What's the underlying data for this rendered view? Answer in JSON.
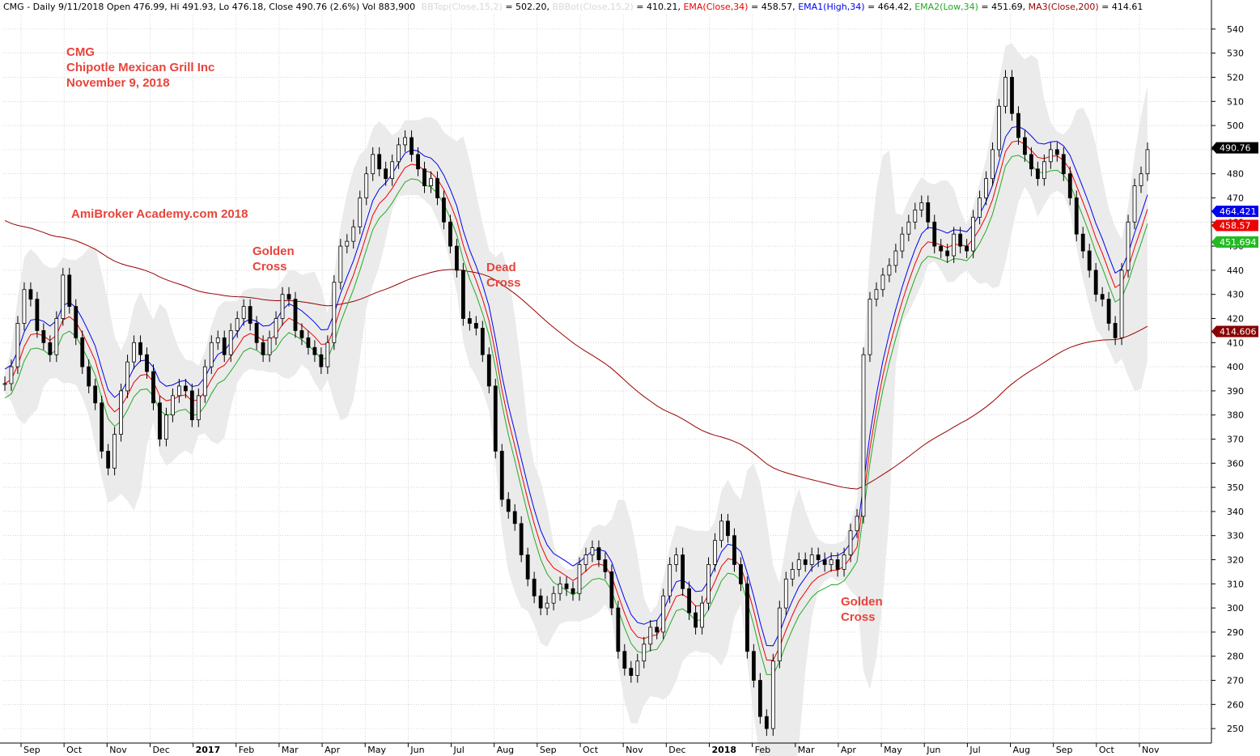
{
  "header": {
    "symbol_info": "CMG - Daily 9/11/2018 Open 476.99, Hi 491.93, Lo 476.18, Close 490.76 (2.6%) Vol 883,900",
    "bbtop_label": "BBTop(Close,15,2)",
    "bbtop_value": " = 502.20, ",
    "bbbot_label": "BBBot(Close,15,2)",
    "bbbot_value": " = 410.21, ",
    "ema_label": "EMA(Close,34)",
    "ema_value": " = 458.57, ",
    "ema1_label": "EMA1(High,34)",
    "ema1_value": " = 464.42, ",
    "ema2_label": "EMA2(Low,34)",
    "ema2_value": " = 451.69, ",
    "ma3_label": "MA3(Close,200)",
    "ma3_value": " = 414.61"
  },
  "annotations": {
    "ticker": "CMG",
    "company": "Chipotle Mexican Grill Inc",
    "date": "November 9, 2018",
    "watermark": "AmiBroker Academy.com  2018",
    "golden_cross_1": [
      "Golden",
      "Cross"
    ],
    "dead_cross": [
      "Dead",
      "Cross"
    ],
    "golden_cross_2": [
      "Golden",
      "Cross"
    ]
  },
  "value_tags": [
    {
      "label": "490.76",
      "value": 490.76,
      "color": "#000000"
    },
    {
      "label": "464.421",
      "value": 464.42,
      "color": "#0000ee"
    },
    {
      "label": "458.57",
      "value": 458.57,
      "color": "#ee0000"
    },
    {
      "label": "451.694",
      "value": 451.69,
      "color": "#22bb22"
    },
    {
      "label": "414.606",
      "value": 414.61,
      "color": "#880000"
    }
  ],
  "colors": {
    "price": "#000000",
    "ema_close": "#ee0000",
    "ema_high": "#0000ee",
    "ema_low": "#22aa22",
    "ma200": "#990000",
    "bollinger_fill": "#e9e9e9",
    "annotation": "#e8443a",
    "grid": "#bbbbbb"
  },
  "chart_data": {
    "type": "line",
    "title": "",
    "xlabel": "",
    "ylabel": "",
    "ylim": [
      244,
      546
    ],
    "grid": true,
    "y_ticks": [
      250,
      260,
      270,
      280,
      290,
      300,
      310,
      320,
      330,
      340,
      350,
      360,
      370,
      380,
      390,
      400,
      410,
      420,
      430,
      440,
      450,
      460,
      470,
      480,
      490,
      500,
      510,
      520,
      530,
      540
    ],
    "x_ticks": [
      {
        "label": "Sep",
        "bold": false
      },
      {
        "label": "Oct",
        "bold": false
      },
      {
        "label": "Nov",
        "bold": false
      },
      {
        "label": "Dec",
        "bold": false
      },
      {
        "label": "2017",
        "bold": true
      },
      {
        "label": "Feb",
        "bold": false
      },
      {
        "label": "Mar",
        "bold": false
      },
      {
        "label": "Apr",
        "bold": false
      },
      {
        "label": "May",
        "bold": false
      },
      {
        "label": "Jun",
        "bold": false
      },
      {
        "label": "Jul",
        "bold": false
      },
      {
        "label": "Aug",
        "bold": false
      },
      {
        "label": "Sep",
        "bold": false
      },
      {
        "label": "Oct",
        "bold": false
      },
      {
        "label": "Nov",
        "bold": false
      },
      {
        "label": "Dec",
        "bold": false
      },
      {
        "label": "2018",
        "bold": true
      },
      {
        "label": "Feb",
        "bold": false
      },
      {
        "label": "Mar",
        "bold": false
      },
      {
        "label": "Apr",
        "bold": false
      },
      {
        "label": "May",
        "bold": false
      },
      {
        "label": "Jun",
        "bold": false
      },
      {
        "label": "Jul",
        "bold": false
      },
      {
        "label": "Aug",
        "bold": false
      },
      {
        "label": "Sep",
        "bold": false
      },
      {
        "label": "Oct",
        "bold": false
      },
      {
        "label": "Nov",
        "bold": false
      }
    ],
    "series": [
      {
        "name": "Close",
        "values": [
          393,
          400,
          418,
          432,
          428,
          415,
          410,
          405,
          420,
          438,
          425,
          412,
          400,
          392,
          385,
          365,
          358,
          372,
          390,
          402,
          410,
          405,
          398,
          385,
          370,
          380,
          388,
          392,
          390,
          378,
          388,
          400,
          410,
          412,
          405,
          415,
          420,
          425,
          418,
          410,
          405,
          412,
          420,
          430,
          428,
          415,
          412,
          408,
          405,
          400,
          410,
          435,
          450,
          452,
          458,
          470,
          480,
          488,
          482,
          478,
          485,
          492,
          495,
          488,
          482,
          475,
          478,
          470,
          460,
          450,
          440,
          420,
          418,
          416,
          405,
          392,
          365,
          345,
          340,
          335,
          322,
          312,
          305,
          300,
          302,
          306,
          310,
          308,
          306,
          318,
          322,
          325,
          320,
          315,
          300,
          282,
          275,
          272,
          278,
          285,
          292,
          290,
          305,
          318,
          322,
          308,
          298,
          292,
          302,
          318,
          328,
          336,
          330,
          318,
          310,
          282,
          270,
          255,
          250,
          278,
          300,
          312,
          316,
          320,
          318,
          322,
          320,
          318,
          320,
          316,
          322,
          332,
          338,
          405,
          428,
          432,
          438,
          442,
          448,
          455,
          460,
          465,
          468,
          460,
          450,
          448,
          446,
          455,
          450,
          448,
          462,
          470,
          478,
          490,
          508,
          520,
          505,
          495,
          488,
          482,
          478,
          485,
          490,
          488,
          480,
          470,
          455,
          448,
          440,
          430,
          428,
          418,
          412,
          440,
          460,
          475,
          480,
          490
        ]
      },
      {
        "name": "EMA(Close,34)",
        "values": []
      },
      {
        "name": "EMA1(High,34)",
        "values": []
      },
      {
        "name": "EMA2(Low,34)",
        "values": []
      },
      {
        "name": "MA3(Close,200)",
        "values": []
      },
      {
        "name": "BBTop(Close,15,2)",
        "values": []
      },
      {
        "name": "BBBot(Close,15,2)",
        "values": []
      }
    ]
  }
}
